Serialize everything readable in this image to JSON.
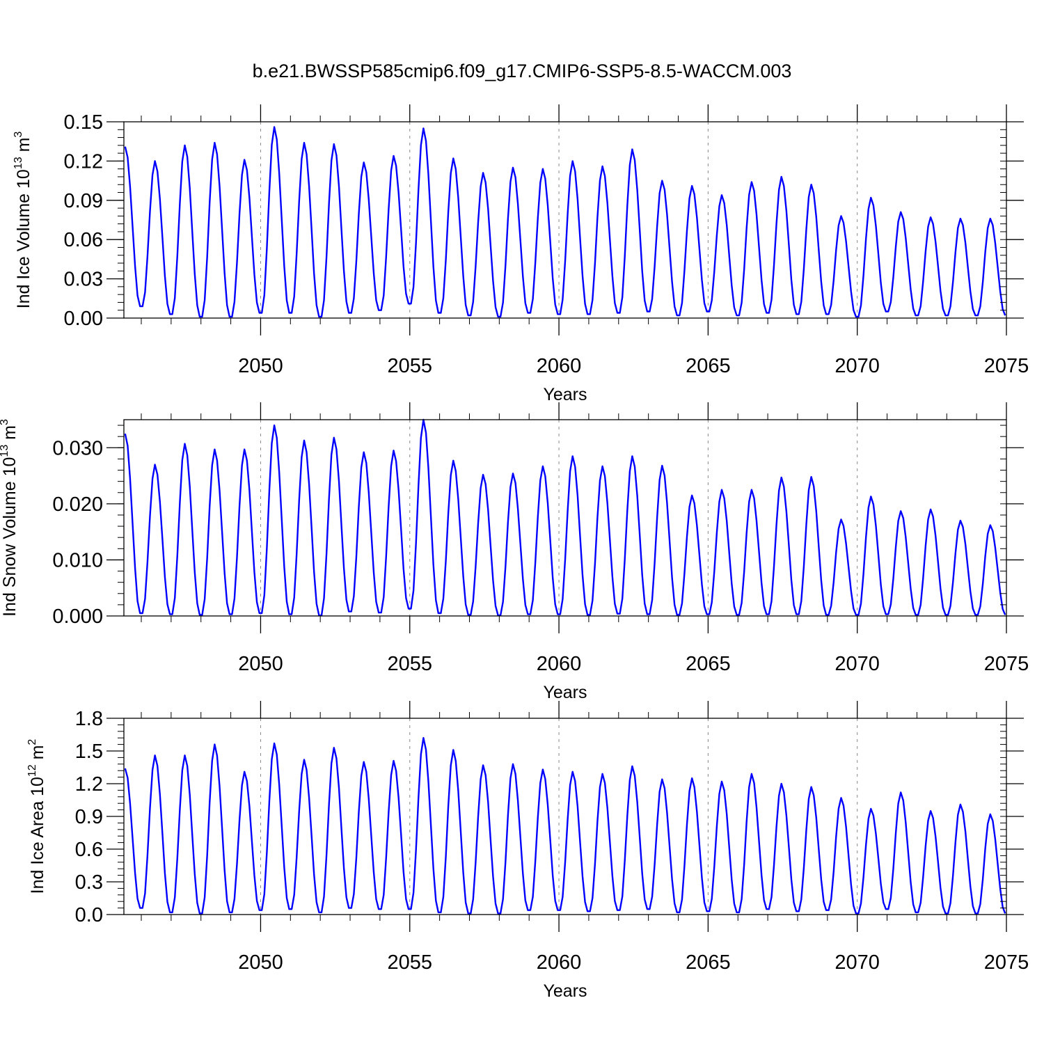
{
  "title": "b.e21.BWSSP585cmip6.f09_g17.CMIP6-SSP5-8.5-WACCM.003",
  "colors": {
    "series": "#0000ff",
    "axis": "#000000",
    "grid": "#888888"
  },
  "chart_data": [
    {
      "type": "line",
      "ylabel": "Ind Ice Volume 10",
      "ylabel_exp": "13",
      "ylabel_unit": " m",
      "ylabel_unit_exp": "3",
      "xlabel": "Years",
      "xlim": [
        2045.4167,
        2075.0
      ],
      "ylim": [
        0.0,
        0.15
      ],
      "xticks": [
        2050,
        2055,
        2060,
        2065,
        2070,
        2075
      ],
      "xtick_labels": [
        "2050",
        "2055",
        "2060",
        "2065",
        "2070",
        "2075"
      ],
      "yticks": [
        0.0,
        0.03,
        0.06,
        0.09,
        0.12,
        0.15
      ],
      "ytick_labels": [
        "0.00",
        "0.03",
        "0.06",
        "0.09",
        "0.12",
        "0.15"
      ],
      "grid": "vertical-dashed-at-major-x",
      "series": [
        {
          "name": "",
          "yearly_min": [
            0.004,
            0.009,
            0.003,
            0.001,
            0.001,
            0.004,
            0.004,
            0.001,
            0.004,
            0.006,
            0.011,
            0.004,
            0.002,
            0.001,
            0.004,
            0.003,
            0.003,
            0.004,
            0.005,
            0.002,
            0.005,
            0.002,
            0.004,
            0.003,
            0.003,
            0.001,
            0.005,
            0.002,
            0.002,
            0.002
          ],
          "yearly_max": [
            0.131,
            0.12,
            0.132,
            0.134,
            0.121,
            0.146,
            0.134,
            0.133,
            0.119,
            0.124,
            0.145,
            0.122,
            0.111,
            0.115,
            0.114,
            0.12,
            0.116,
            0.129,
            0.105,
            0.101,
            0.094,
            0.104,
            0.108,
            0.102,
            0.078,
            0.092,
            0.081,
            0.077,
            0.076,
            0.076
          ]
        }
      ]
    },
    {
      "type": "line",
      "ylabel": "Ind Snow Volume 10",
      "ylabel_exp": "13",
      "ylabel_unit": " m",
      "ylabel_unit_exp": "3",
      "xlabel": "Years",
      "xlim": [
        2045.4167,
        2075.0
      ],
      "ylim": [
        0.0,
        0.035
      ],
      "xticks": [
        2050,
        2055,
        2060,
        2065,
        2070,
        2075
      ],
      "xtick_labels": [
        "2050",
        "2055",
        "2060",
        "2065",
        "2070",
        "2075"
      ],
      "yticks": [
        0.0,
        0.01,
        0.02,
        0.03
      ],
      "ytick_labels": [
        "0.000",
        "0.010",
        "0.020",
        "0.030"
      ],
      "grid": "vertical-dashed-at-major-x",
      "series": [
        {
          "name": "",
          "yearly_min": [
            0.0005,
            0.0005,
            0.0003,
            0.0002,
            0.0003,
            0.0005,
            0.0003,
            0.0001,
            0.0008,
            0.0006,
            0.0013,
            0.0005,
            0.0002,
            0.0001,
            0.0003,
            0.0003,
            0.0002,
            0.0004,
            0.0003,
            0.0002,
            0.0003,
            0.0002,
            0.0003,
            0.0003,
            0.0002,
            0.0002,
            0.0003,
            0.0002,
            0.0002,
            0.0002
          ],
          "yearly_max": [
            0.0325,
            0.027,
            0.0307,
            0.0297,
            0.0297,
            0.034,
            0.0313,
            0.0318,
            0.0292,
            0.0295,
            0.035,
            0.0277,
            0.0252,
            0.0254,
            0.0267,
            0.0285,
            0.0267,
            0.0285,
            0.0268,
            0.0215,
            0.0225,
            0.0225,
            0.0247,
            0.0248,
            0.0172,
            0.0213,
            0.0187,
            0.019,
            0.017,
            0.0162
          ]
        }
      ]
    },
    {
      "type": "line",
      "ylabel": "Ind Ice Area 10",
      "ylabel_exp": "12",
      "ylabel_unit": " m",
      "ylabel_unit_exp": "2",
      "xlabel": "Years",
      "xlim": [
        2045.4167,
        2075.0
      ],
      "ylim": [
        0.0,
        1.8
      ],
      "xticks": [
        2050,
        2055,
        2060,
        2065,
        2070,
        2075
      ],
      "xtick_labels": [
        "2050",
        "2055",
        "2060",
        "2065",
        "2070",
        "2075"
      ],
      "yticks": [
        0.0,
        0.3,
        0.6,
        0.9,
        1.2,
        1.5,
        1.8
      ],
      "ytick_labels": [
        "0.0",
        "0.3",
        "0.6",
        "0.9",
        "1.2",
        "1.5",
        "1.8"
      ],
      "grid": "vertical-dashed-at-major-x",
      "series": [
        {
          "name": "",
          "yearly_min": [
            0.03,
            0.06,
            0.02,
            0.01,
            0.02,
            0.04,
            0.05,
            0.02,
            0.06,
            0.05,
            0.05,
            0.02,
            0.01,
            0.01,
            0.04,
            0.04,
            0.03,
            0.04,
            0.05,
            0.02,
            0.03,
            0.02,
            0.05,
            0.03,
            0.04,
            0.01,
            0.05,
            0.02,
            0.01,
            0.01
          ],
          "yearly_max": [
            1.34,
            1.46,
            1.46,
            1.56,
            1.31,
            1.57,
            1.42,
            1.53,
            1.4,
            1.41,
            1.62,
            1.51,
            1.37,
            1.38,
            1.33,
            1.31,
            1.29,
            1.36,
            1.24,
            1.25,
            1.22,
            1.29,
            1.2,
            1.17,
            1.07,
            0.97,
            1.12,
            0.95,
            1.01,
            0.92
          ]
        }
      ]
    }
  ]
}
